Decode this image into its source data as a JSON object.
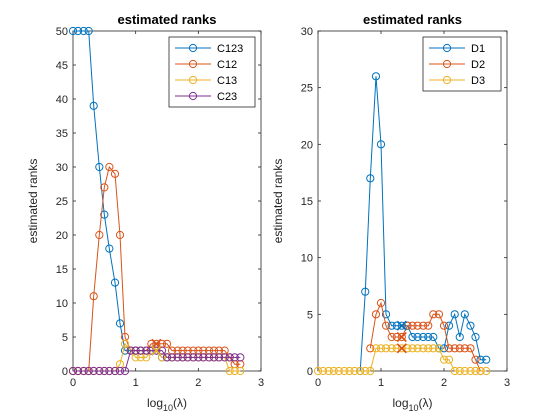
{
  "chart_data": [
    {
      "type": "line",
      "title": "estimated ranks",
      "xlabel": "log10(λ)",
      "ylabel": "estimated ranks",
      "xlim": [
        0,
        3
      ],
      "ylim": [
        0,
        50
      ],
      "xticks": [
        0,
        1,
        2,
        3
      ],
      "yticks": [
        0,
        5,
        10,
        15,
        20,
        25,
        30,
        35,
        40,
        45,
        50
      ],
      "grid": false,
      "legend": "top-right",
      "selected_x": 1.33,
      "series": [
        {
          "name": "C123",
          "color": "#0072BD",
          "x": [
            0.0,
            0.08,
            0.17,
            0.25,
            0.33,
            0.42,
            0.5,
            0.58,
            0.67,
            0.75,
            0.83,
            0.92,
            1.0,
            1.08,
            1.17,
            1.25,
            1.33,
            1.42,
            1.5
          ],
          "y": [
            50,
            50,
            50,
            50,
            39,
            30,
            23,
            18,
            13,
            7,
            3,
            3,
            3,
            3,
            3,
            3,
            3,
            2,
            2
          ]
        },
        {
          "name": "C12",
          "color": "#D95319",
          "x": [
            0.0,
            0.08,
            0.17,
            0.25,
            0.33,
            0.42,
            0.5,
            0.58,
            0.67,
            0.75,
            0.83,
            0.92,
            1.0,
            1.08,
            1.17,
            1.25,
            1.33,
            1.42,
            1.5,
            1.58,
            1.67,
            1.75,
            1.83,
            1.92,
            2.0,
            2.08,
            2.17,
            2.25,
            2.33,
            2.42,
            2.5,
            2.58,
            2.67
          ],
          "y": [
            0,
            0,
            0,
            0,
            11,
            20,
            27,
            30,
            29,
            20,
            5,
            3,
            3,
            3,
            3,
            4,
            4,
            4,
            4,
            3,
            3,
            3,
            3,
            3,
            3,
            3,
            3,
            3,
            3,
            3,
            2,
            1,
            1
          ]
        },
        {
          "name": "C13",
          "color": "#EDB120",
          "x": [
            0.0,
            0.08,
            0.17,
            0.25,
            0.33,
            0.42,
            0.5,
            0.58,
            0.67,
            0.75,
            0.83,
            0.92,
            1.0,
            1.08,
            1.17,
            1.25,
            1.33,
            1.42,
            1.5,
            1.58,
            1.67,
            1.75,
            1.83,
            1.92,
            2.0,
            2.08,
            2.17,
            2.25,
            2.33,
            2.42,
            2.5,
            2.58,
            2.67
          ],
          "y": [
            0,
            0,
            0,
            0,
            0,
            0,
            0,
            0,
            0,
            1,
            4,
            3,
            2,
            2,
            2,
            3,
            3,
            2,
            2,
            2,
            2,
            2,
            2,
            2,
            2,
            2,
            2,
            2,
            2,
            2,
            0,
            0,
            0
          ]
        },
        {
          "name": "C23",
          "color": "#7E2F8E",
          "x": [
            0.0,
            0.08,
            0.17,
            0.25,
            0.33,
            0.42,
            0.5,
            0.58,
            0.67,
            0.75,
            0.83,
            0.92,
            1.0,
            1.08,
            1.17,
            1.25,
            1.33,
            1.42,
            1.5,
            1.58,
            1.67,
            1.75,
            1.83,
            1.92,
            2.0,
            2.08,
            2.17,
            2.25,
            2.33,
            2.42,
            2.5,
            2.58,
            2.67
          ],
          "y": [
            0,
            0,
            0,
            0,
            0,
            0,
            0,
            0,
            0,
            0,
            0,
            3,
            3,
            3,
            3,
            3,
            3,
            3,
            2,
            2,
            2,
            2,
            2,
            2,
            2,
            2,
            2,
            2,
            2,
            2,
            2,
            2,
            2
          ]
        }
      ],
      "markers": [
        {
          "x": 1.33,
          "y": 4,
          "color": "#D95319"
        },
        {
          "x": 1.33,
          "y": 3,
          "color": "#0072BD"
        },
        {
          "x": 1.33,
          "y": 3,
          "color": "#7E2F8E"
        },
        {
          "x": 1.33,
          "y": 3,
          "color": "#EDB120"
        }
      ]
    },
    {
      "type": "line",
      "title": "estimated ranks",
      "xlabel": "log10(λ)",
      "ylabel": "estimated ranks",
      "xlim": [
        0,
        3
      ],
      "ylim": [
        0,
        30
      ],
      "xticks": [
        0,
        1,
        2,
        3
      ],
      "yticks": [
        0,
        5,
        10,
        15,
        20,
        25,
        30
      ],
      "grid": false,
      "legend": "top-right",
      "selected_x": 1.33,
      "series": [
        {
          "name": "D1",
          "color": "#0072BD",
          "x": [
            0.67,
            0.75,
            0.83,
            0.92,
            1.0,
            1.08,
            1.17,
            1.25,
            1.33,
            1.42,
            1.5,
            1.58,
            1.67,
            1.75,
            1.83,
            1.92,
            2.0,
            2.08,
            2.17,
            2.25,
            2.33,
            2.42,
            2.5,
            2.58,
            2.67
          ],
          "y": [
            0,
            7,
            17,
            26,
            20,
            5,
            4,
            4,
            4,
            4,
            3,
            3,
            3,
            3,
            3,
            2,
            2,
            4,
            5,
            3,
            5,
            4,
            3,
            1,
            1
          ]
        },
        {
          "name": "D2",
          "color": "#D95319",
          "x": [
            0.83,
            0.92,
            1.0,
            1.08,
            1.17,
            1.25,
            1.33,
            1.42,
            1.5,
            1.58,
            1.67,
            1.75,
            1.83,
            1.92,
            2.0,
            2.08,
            2.17,
            2.25,
            2.33,
            2.42,
            2.5,
            2.58
          ],
          "y": [
            2,
            5,
            6,
            4,
            3,
            3,
            3,
            4,
            4,
            4,
            4,
            4,
            5,
            5,
            4,
            2,
            2,
            2,
            2,
            2,
            1,
            0
          ]
        },
        {
          "name": "D3",
          "color": "#EDB120",
          "x": [
            0.0,
            0.08,
            0.17,
            0.25,
            0.33,
            0.42,
            0.5,
            0.58,
            0.67,
            0.75,
            0.83,
            0.92,
            1.0,
            1.08,
            1.17,
            1.25,
            1.33,
            1.42,
            1.5,
            1.58,
            1.67,
            1.75,
            1.83,
            1.92,
            2.0,
            2.08,
            2.17,
            2.25,
            2.33,
            2.42,
            2.5,
            2.58,
            2.67
          ],
          "y": [
            0,
            0,
            0,
            0,
            0,
            0,
            0,
            0,
            0,
            0,
            0,
            2,
            2,
            2,
            2,
            2,
            2,
            2,
            2,
            2,
            2,
            2,
            2,
            2,
            1,
            1,
            0,
            0,
            0,
            0,
            0,
            0,
            0
          ]
        }
      ],
      "markers": [
        {
          "x": 1.33,
          "y": 4,
          "color": "#0072BD"
        },
        {
          "x": 1.33,
          "y": 3,
          "color": "#D95319"
        },
        {
          "x": 1.33,
          "y": 2,
          "color": "#D95319"
        }
      ]
    }
  ]
}
